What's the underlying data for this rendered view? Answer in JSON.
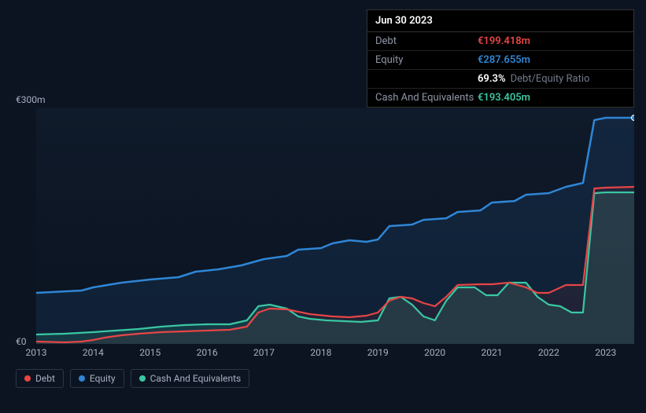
{
  "tooltip": {
    "date": "Jun 30 2023",
    "rows": {
      "debt": {
        "label": "Debt",
        "value": "€199.418m"
      },
      "equity": {
        "label": "Equity",
        "value": "€287.655m"
      },
      "ratio": {
        "value": "69.3%",
        "suffix": "Debt/Equity Ratio"
      },
      "cash": {
        "label": "Cash And Equivalents",
        "value": "€193.405m"
      }
    }
  },
  "chart": {
    "type": "line-area",
    "background_color": "#0d1421",
    "plot_bg": "#0f1a2a",
    "grid_color": "#1a2536",
    "y_label_top": "€300m",
    "y_label_bot": "€0",
    "ylim": [
      0,
      300
    ],
    "x_categories": [
      "2013",
      "2014",
      "2015",
      "2016",
      "2017",
      "2018",
      "2019",
      "2020",
      "2021",
      "2022",
      "2023"
    ],
    "x_range_fractions": [
      0,
      1.05
    ],
    "series": {
      "equity": {
        "label": "Equity",
        "color": "#2f86d6",
        "line_width": 2.5,
        "area_opacity": 0.12,
        "points": [
          [
            0.0,
            65
          ],
          [
            0.08,
            68
          ],
          [
            0.1,
            72
          ],
          [
            0.15,
            78
          ],
          [
            0.2,
            82
          ],
          [
            0.25,
            85
          ],
          [
            0.28,
            92
          ],
          [
            0.32,
            95
          ],
          [
            0.36,
            100
          ],
          [
            0.4,
            108
          ],
          [
            0.44,
            112
          ],
          [
            0.46,
            120
          ],
          [
            0.5,
            122
          ],
          [
            0.52,
            128
          ],
          [
            0.55,
            132
          ],
          [
            0.58,
            130
          ],
          [
            0.6,
            133
          ],
          [
            0.62,
            150
          ],
          [
            0.66,
            152
          ],
          [
            0.68,
            158
          ],
          [
            0.72,
            160
          ],
          [
            0.74,
            168
          ],
          [
            0.78,
            170
          ],
          [
            0.8,
            180
          ],
          [
            0.84,
            182
          ],
          [
            0.86,
            190
          ],
          [
            0.9,
            192
          ],
          [
            0.93,
            200
          ],
          [
            0.96,
            205
          ],
          [
            0.98,
            285
          ],
          [
            1.0,
            288
          ],
          [
            1.05,
            288
          ]
        ]
      },
      "debt": {
        "label": "Debt",
        "color": "#e64545",
        "line_width": 2.2,
        "area_opacity": 0.08,
        "points": [
          [
            0.0,
            3
          ],
          [
            0.05,
            2
          ],
          [
            0.08,
            3
          ],
          [
            0.1,
            5
          ],
          [
            0.12,
            8
          ],
          [
            0.15,
            11
          ],
          [
            0.18,
            13
          ],
          [
            0.22,
            15
          ],
          [
            0.26,
            16
          ],
          [
            0.3,
            17
          ],
          [
            0.34,
            18
          ],
          [
            0.37,
            22
          ],
          [
            0.39,
            40
          ],
          [
            0.41,
            45
          ],
          [
            0.44,
            44
          ],
          [
            0.48,
            38
          ],
          [
            0.52,
            35
          ],
          [
            0.55,
            34
          ],
          [
            0.58,
            36
          ],
          [
            0.6,
            40
          ],
          [
            0.62,
            55
          ],
          [
            0.64,
            60
          ],
          [
            0.66,
            58
          ],
          [
            0.68,
            52
          ],
          [
            0.7,
            48
          ],
          [
            0.72,
            60
          ],
          [
            0.74,
            75
          ],
          [
            0.78,
            76
          ],
          [
            0.8,
            76
          ],
          [
            0.83,
            78
          ],
          [
            0.86,
            72
          ],
          [
            0.88,
            65
          ],
          [
            0.9,
            65
          ],
          [
            0.93,
            75
          ],
          [
            0.96,
            75
          ],
          [
            0.98,
            198
          ],
          [
            1.0,
            199
          ],
          [
            1.05,
            200
          ]
        ]
      },
      "cash": {
        "label": "Cash And Equivalents",
        "color": "#3ac7a2",
        "line_width": 2.2,
        "area_opacity": 0.15,
        "points": [
          [
            0.0,
            12
          ],
          [
            0.05,
            13
          ],
          [
            0.1,
            15
          ],
          [
            0.14,
            17
          ],
          [
            0.18,
            19
          ],
          [
            0.22,
            22
          ],
          [
            0.26,
            24
          ],
          [
            0.3,
            25
          ],
          [
            0.34,
            25
          ],
          [
            0.37,
            30
          ],
          [
            0.39,
            48
          ],
          [
            0.41,
            50
          ],
          [
            0.44,
            45
          ],
          [
            0.46,
            35
          ],
          [
            0.48,
            32
          ],
          [
            0.51,
            30
          ],
          [
            0.54,
            29
          ],
          [
            0.57,
            28
          ],
          [
            0.6,
            30
          ],
          [
            0.62,
            58
          ],
          [
            0.64,
            60
          ],
          [
            0.66,
            50
          ],
          [
            0.68,
            35
          ],
          [
            0.7,
            30
          ],
          [
            0.72,
            55
          ],
          [
            0.74,
            72
          ],
          [
            0.77,
            72
          ],
          [
            0.79,
            62
          ],
          [
            0.81,
            62
          ],
          [
            0.83,
            78
          ],
          [
            0.86,
            78
          ],
          [
            0.88,
            60
          ],
          [
            0.9,
            50
          ],
          [
            0.92,
            48
          ],
          [
            0.94,
            40
          ],
          [
            0.96,
            40
          ],
          [
            0.98,
            192
          ],
          [
            1.0,
            193
          ],
          [
            1.05,
            193
          ]
        ]
      }
    },
    "legend_order": [
      "debt",
      "equity",
      "cash"
    ]
  }
}
